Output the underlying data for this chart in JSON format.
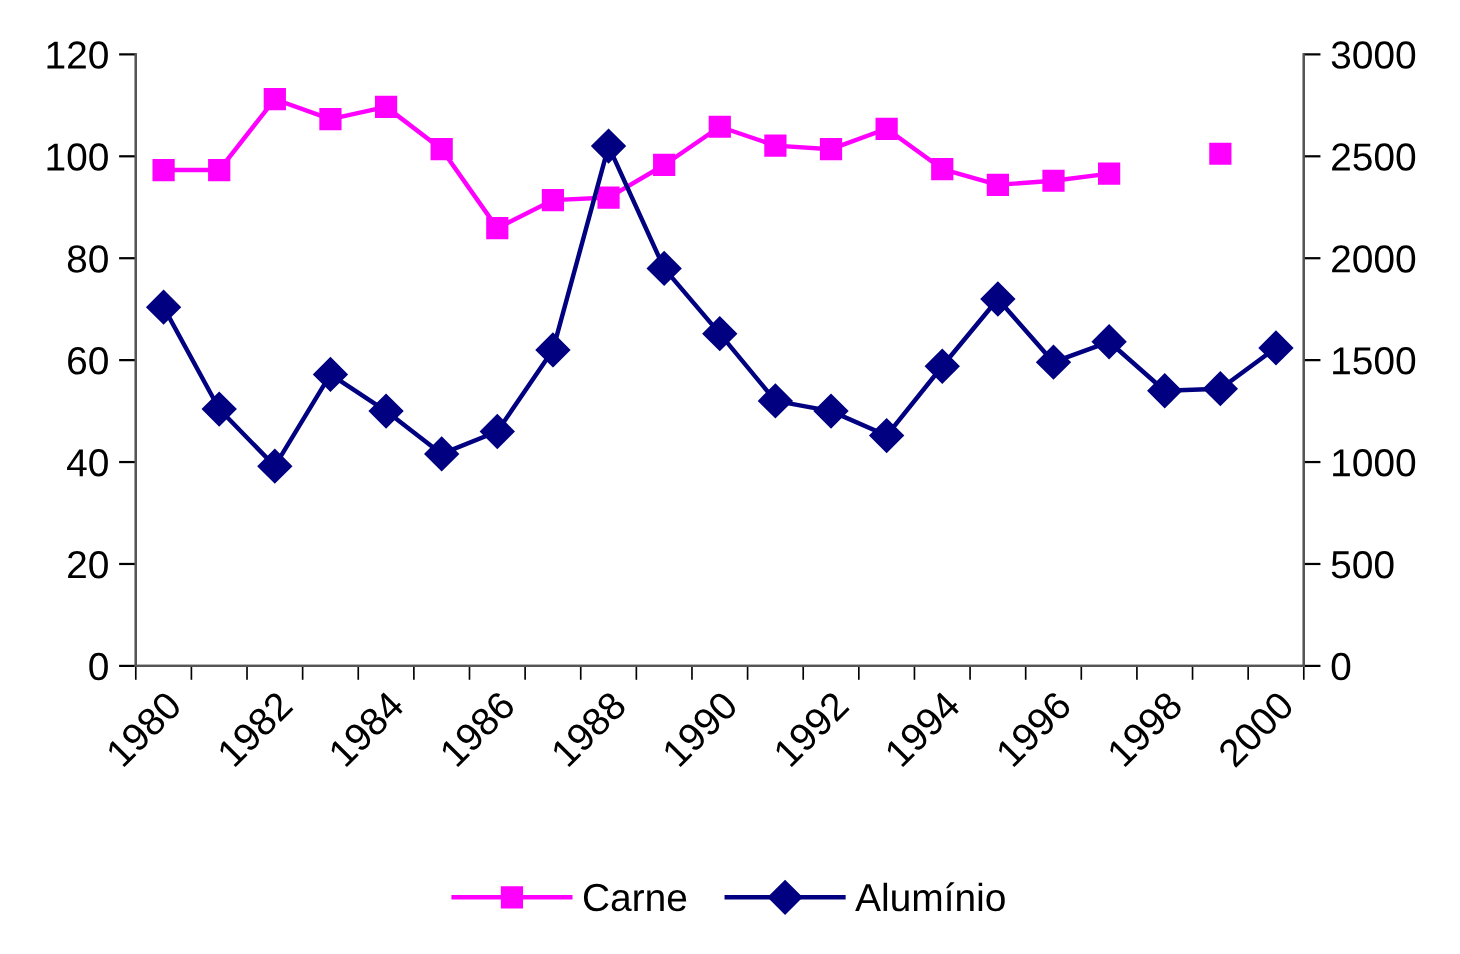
{
  "chart_data": {
    "type": "line",
    "categories": [
      "1980",
      null,
      "1982",
      null,
      "1984",
      null,
      "1986",
      null,
      "1988",
      null,
      "1990",
      null,
      "1992",
      null,
      "1994",
      null,
      "1996",
      null,
      "1998",
      null,
      "2000"
    ],
    "series": [
      {
        "name": "Carne",
        "color": "#ff00ff",
        "marker": "square",
        "values": [
          97.3,
          97.3,
          111.2,
          107.3,
          109.7,
          101.4,
          85.9,
          91.4,
          91.9,
          98.3,
          105.8,
          102.1,
          101.4,
          105.4,
          97.5,
          94.4,
          95.2,
          96.6,
          null,
          100.5,
          null
        ]
      },
      {
        "name": "Alumínio",
        "color": "#000080",
        "marker": "diamond",
        "axis": "y2",
        "values": [
          1760,
          1260,
          980,
          1430,
          1250,
          1040,
          1150,
          1550,
          2550,
          1950,
          1630,
          1300,
          1250,
          1130,
          1470,
          1800,
          1490,
          1590,
          1350,
          1360,
          1560
        ]
      }
    ],
    "ylim": [
      0,
      120
    ],
    "yticks": [
      0,
      20,
      40,
      60,
      80,
      100,
      120
    ],
    "y2lim": [
      0,
      3000
    ],
    "y2ticks": [
      0,
      500,
      1000,
      1500,
      2000,
      2500,
      3000
    ],
    "grid": false,
    "legend": "bottom",
    "line_style": "solid"
  }
}
